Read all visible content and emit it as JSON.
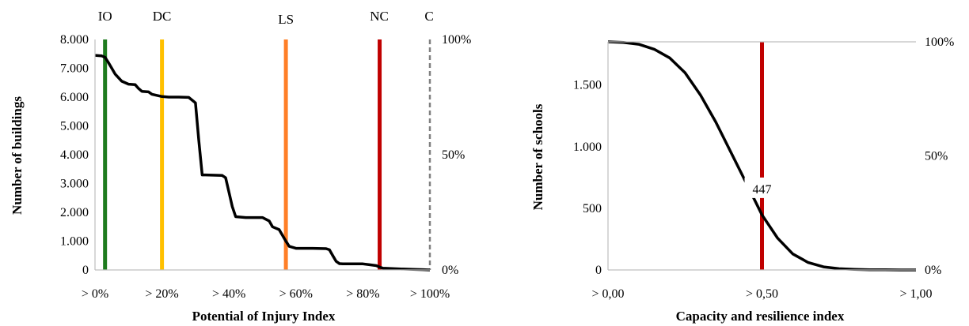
{
  "chart_data": [
    {
      "type": "line",
      "xlabel": "Potential of Injury Index",
      "ylabel": "Number of buildings",
      "x_range": [
        0,
        100
      ],
      "ylim": [
        0,
        8000
      ],
      "y2lim": [
        0,
        100
      ],
      "x_ticks": [
        {
          "value": 0,
          "label": "> 0%"
        },
        {
          "value": 20,
          "label": "> 20%"
        },
        {
          "value": 40,
          "label": "> 40%"
        },
        {
          "value": 60,
          "label": "> 60%"
        },
        {
          "value": 80,
          "label": "> 80%"
        },
        {
          "value": 100,
          "label": "> 100%"
        }
      ],
      "y_ticks": [
        {
          "value": 0,
          "label": "0"
        },
        {
          "value": 1000,
          "label": "1.000"
        },
        {
          "value": 2000,
          "label": "2.000"
        },
        {
          "value": 3000,
          "label": "3.000"
        },
        {
          "value": 4000,
          "label": "4.000"
        },
        {
          "value": 5000,
          "label": "5.000"
        },
        {
          "value": 6000,
          "label": "6.000"
        },
        {
          "value": 7000,
          "label": "7.000"
        },
        {
          "value": 8000,
          "label": "8.000"
        }
      ],
      "y2_ticks": [
        {
          "value": 0,
          "label": "0%"
        },
        {
          "value": 50,
          "label": "50%"
        },
        {
          "value": 100,
          "label": "100%"
        }
      ],
      "series": [
        {
          "color": "#000000",
          "x": [
            0,
            2,
            3,
            4,
            5,
            6,
            8,
            10,
            12,
            13,
            14,
            16,
            17,
            20,
            22,
            25,
            28,
            30,
            31,
            32,
            33,
            35,
            38,
            39,
            40,
            41,
            42,
            45,
            50,
            52,
            53,
            55,
            57,
            58,
            60,
            65,
            69,
            70,
            71,
            72,
            73,
            74,
            75,
            80,
            82,
            84,
            85,
            86,
            90,
            95,
            98,
            100
          ],
          "y": [
            7450,
            7430,
            7380,
            7200,
            7000,
            6800,
            6550,
            6450,
            6430,
            6300,
            6200,
            6180,
            6100,
            6020,
            6000,
            6000,
            5990,
            5800,
            4500,
            3300,
            3300,
            3290,
            3280,
            3200,
            2700,
            2200,
            1850,
            1820,
            1820,
            1700,
            1500,
            1400,
            1000,
            820,
            750,
            750,
            740,
            700,
            500,
            300,
            220,
            210,
            210,
            210,
            180,
            150,
            100,
            60,
            40,
            20,
            10,
            0
          ]
        }
      ],
      "markers": [
        {
          "label": "IO",
          "x": 3,
          "color": "#1e7b1e"
        },
        {
          "label": "DC",
          "x": 20,
          "color": "#ffc000"
        },
        {
          "label": "LS",
          "x": 57,
          "color": "#ff7f27"
        },
        {
          "label": "NC",
          "x": 85,
          "color": "#c00000"
        },
        {
          "label": "C",
          "x": 100,
          "color": "#808080"
        }
      ]
    },
    {
      "type": "line",
      "xlabel": "Capacity and resilience index",
      "ylabel": "Number of schools",
      "x_range": [
        0,
        1
      ],
      "ylim": [
        0,
        1850
      ],
      "y2lim": [
        0,
        100
      ],
      "x_ticks": [
        {
          "value": 0,
          "label": "> 0,00"
        },
        {
          "value": 0.5,
          "label": "> 0,50"
        },
        {
          "value": 1,
          "label": "> 1,00"
        }
      ],
      "y_ticks": [
        {
          "value": 0,
          "label": "0"
        },
        {
          "value": 500,
          "label": "500"
        },
        {
          "value": 1000,
          "label": "1.000"
        },
        {
          "value": 1500,
          "label": "1.500"
        }
      ],
      "y2_ticks": [
        {
          "value": 0,
          "label": "0%"
        },
        {
          "value": 50,
          "label": "50%"
        },
        {
          "value": 100,
          "label": "100%"
        }
      ],
      "series": [
        {
          "color": "#000000",
          "x": [
            0,
            0.05,
            0.1,
            0.15,
            0.2,
            0.25,
            0.3,
            0.35,
            0.4,
            0.45,
            0.5,
            0.55,
            0.6,
            0.65,
            0.7,
            0.75,
            0.8,
            0.85,
            0.9,
            0.95,
            1.0
          ],
          "y": [
            1850,
            1845,
            1830,
            1790,
            1720,
            1600,
            1420,
            1200,
            950,
            700,
            447,
            260,
            130,
            60,
            25,
            10,
            5,
            2,
            1,
            0,
            0
          ]
        }
      ],
      "markers": [
        {
          "label": "",
          "x": 0.5,
          "color": "#c00000"
        }
      ],
      "annotations": [
        {
          "text": "447",
          "x": 0.5,
          "y": 660
        }
      ]
    }
  ]
}
